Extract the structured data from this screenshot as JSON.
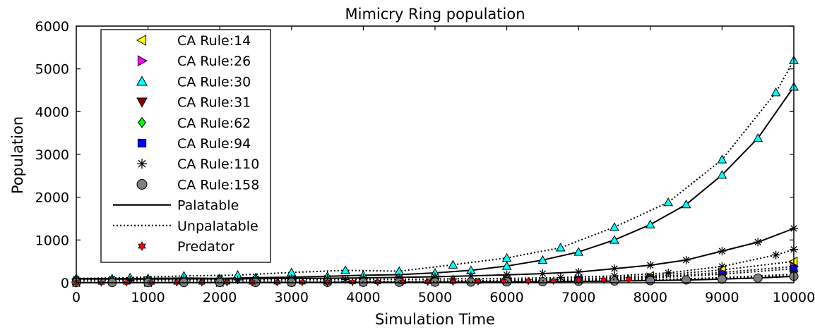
{
  "chart_data": {
    "type": "line",
    "title": "Mimicry Ring population",
    "xlabel": "Simulation Time",
    "ylabel": "Population",
    "xlim": [
      0,
      10000
    ],
    "ylim": [
      0,
      6000
    ],
    "xticks": [
      "0",
      "1000",
      "2000",
      "3000",
      "4000",
      "5000",
      "6000",
      "7000",
      "8000",
      "9000",
      "10000"
    ],
    "yticks": [
      "0",
      "1000",
      "2000",
      "3000",
      "4000",
      "5000",
      "6000"
    ],
    "grid": false,
    "legend_position": "top-left",
    "legend": [
      {
        "label": "CA Rule:14",
        "marker": "triangle-left",
        "color": "#ffff00"
      },
      {
        "label": "CA Rule:26",
        "marker": "triangle-right",
        "color": "#ff00ff"
      },
      {
        "label": "CA Rule:30",
        "marker": "triangle-up",
        "color": "#00ffff"
      },
      {
        "label": "CA Rule:31",
        "marker": "triangle-down",
        "color": "#8b0000"
      },
      {
        "label": "CA Rule:62",
        "marker": "diamond",
        "color": "#00ff00"
      },
      {
        "label": "CA Rule:94",
        "marker": "square",
        "color": "#0000ff"
      },
      {
        "label": "CA Rule:110",
        "marker": "asterisk",
        "color": "#000000"
      },
      {
        "label": "CA Rule:158",
        "marker": "circle",
        "color": "#808080"
      },
      {
        "label": "Palatable",
        "marker": "solid-line",
        "color": "#000000"
      },
      {
        "label": "Unpalatable",
        "marker": "dotted-line",
        "color": "#000000"
      },
      {
        "label": "Predator",
        "marker": "hexagram",
        "color": "#ff0000"
      }
    ],
    "series": [
      {
        "name": "CA Rule:30",
        "line": "solid",
        "marker": "triangle-up",
        "color": "#00ffff",
        "x": [
          0,
          500,
          1000,
          1500,
          2000,
          2500,
          3000,
          3500,
          4000,
          4500,
          5000,
          5500,
          6000,
          6500,
          7000,
          7500,
          8000,
          8500,
          9000,
          9500,
          10000
        ],
        "y": [
          100,
          95,
          100,
          110,
          100,
          120,
          130,
          150,
          175,
          190,
          230,
          290,
          390,
          530,
          720,
          1000,
          1360,
          1830,
          2520,
          3380,
          4580
        ]
      },
      {
        "name": "CA Rule:30",
        "line": "dotted",
        "marker": "triangle-up",
        "color": "#00ffff",
        "x": [
          0,
          750,
          1500,
          2250,
          3000,
          3750,
          4500,
          5250,
          6000,
          6750,
          7500,
          8250,
          9000,
          9750,
          10000
        ],
        "y": [
          100,
          120,
          160,
          180,
          240,
          290,
          270,
          420,
          580,
          820,
          1300,
          1880,
          2880,
          4450,
          5200
        ]
      },
      {
        "name": "CA Rule:110",
        "line": "solid",
        "marker": "asterisk",
        "color": "#000000",
        "x": [
          0,
          500,
          1000,
          1500,
          2000,
          2500,
          3000,
          3500,
          4000,
          4500,
          5000,
          5500,
          6000,
          6500,
          7000,
          7500,
          8000,
          8500,
          9000,
          9500,
          10000
        ],
        "y": [
          90,
          85,
          85,
          90,
          90,
          95,
          100,
          105,
          115,
          125,
          140,
          160,
          185,
          215,
          250,
          330,
          410,
          530,
          740,
          950,
          1270
        ]
      },
      {
        "name": "CA Rule:110",
        "line": "dotted",
        "marker": "asterisk",
        "color": "#000000",
        "x": [
          0,
          750,
          1500,
          2250,
          3000,
          3750,
          4500,
          5250,
          6000,
          6750,
          7500,
          8250,
          9000,
          9750,
          10000
        ],
        "y": [
          60,
          60,
          65,
          65,
          70,
          75,
          80,
          90,
          100,
          120,
          160,
          230,
          380,
          650,
          780
        ]
      },
      {
        "name": "CA Rule:14",
        "line": "dotted",
        "marker": "triangle-left",
        "color": "#ffff00",
        "x": [
          0,
          1000,
          2000,
          3000,
          4000,
          5000,
          6000,
          7000,
          8000,
          9000,
          10000
        ],
        "y": [
          10,
          10,
          15,
          20,
          30,
          40,
          60,
          90,
          160,
          300,
          500
        ]
      },
      {
        "name": "CA Rule:26",
        "line": "dotted",
        "marker": "triangle-right",
        "color": "#ff00ff",
        "x": [
          0,
          1000,
          2000,
          3000,
          4000,
          5000,
          6000,
          7000,
          8000,
          9000,
          10000
        ],
        "y": [
          10,
          10,
          15,
          20,
          25,
          35,
          55,
          80,
          130,
          240,
          380
        ]
      },
      {
        "name": "CA Rule:94",
        "line": "dotted",
        "marker": "square",
        "color": "#0000ff",
        "x": [
          0,
          1000,
          2000,
          3000,
          4000,
          5000,
          6000,
          7000,
          8000,
          9000,
          10000
        ],
        "y": [
          5,
          8,
          10,
          15,
          20,
          30,
          45,
          70,
          110,
          200,
          330
        ]
      },
      {
        "name": "CA Rule:31",
        "line": "dotted",
        "marker": "triangle-down",
        "color": "#8b0000",
        "x": [
          0,
          1000,
          2000,
          3000,
          4000,
          5000,
          6000,
          7000,
          8000,
          9000,
          10000
        ],
        "y": [
          5,
          5,
          8,
          10,
          15,
          20,
          30,
          45,
          70,
          120,
          200
        ]
      },
      {
        "name": "CA Rule:62",
        "line": "dotted",
        "marker": "diamond",
        "color": "#00ff00",
        "x": [
          0,
          1000,
          2000,
          3000,
          4000,
          5000,
          6000,
          7000,
          8000,
          9000,
          10000
        ],
        "y": [
          5,
          5,
          5,
          8,
          10,
          15,
          25,
          40,
          60,
          100,
          160
        ]
      },
      {
        "name": "CA Rule:158",
        "line": "solid",
        "marker": "circle",
        "color": "#808080",
        "x": [
          0,
          500,
          1000,
          1500,
          2000,
          2500,
          3000,
          3500,
          4000,
          4500,
          5000,
          5500,
          6000,
          6500,
          7000,
          7500,
          8000,
          8500,
          9000,
          9500,
          10000
        ],
        "y": [
          5,
          5,
          5,
          5,
          6,
          6,
          8,
          9,
          10,
          12,
          14,
          17,
          20,
          25,
          32,
          40,
          50,
          65,
          85,
          110,
          150
        ]
      },
      {
        "name": "Predator",
        "line": "dotted",
        "marker": "hexagram",
        "color": "#ff0000",
        "x": [
          0,
          350,
          700,
          1050,
          1400,
          1750,
          2100,
          2450,
          2800,
          3150,
          3500,
          3850,
          4200,
          4550,
          4900,
          5250,
          5600,
          5950,
          6300,
          6650,
          7000,
          7350,
          7700
        ],
        "y": [
          5,
          5,
          6,
          6,
          7,
          7,
          8,
          9,
          10,
          11,
          12,
          14,
          16,
          18,
          21,
          24,
          28,
          33,
          40,
          48,
          58,
          70,
          85
        ]
      }
    ]
  }
}
